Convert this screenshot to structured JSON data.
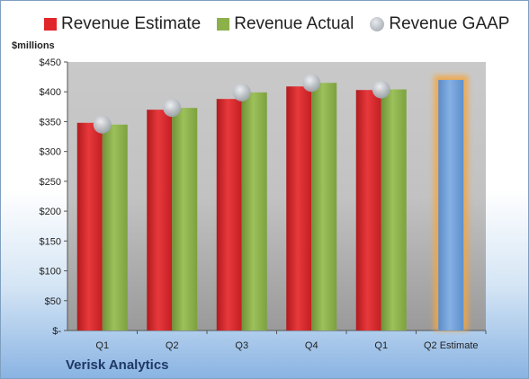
{
  "chart_data": {
    "type": "bar",
    "title": "",
    "ylabel": "$millions",
    "company": "Verisk Analytics",
    "categories": [
      "Q1",
      "Q2",
      "Q3",
      "Q4",
      "Q1",
      "Q2 Estimate"
    ],
    "ylim": [
      0,
      450
    ],
    "yticks": [
      0,
      50,
      100,
      150,
      200,
      250,
      300,
      350,
      400,
      450
    ],
    "ytick_labels": [
      "$-",
      "$50",
      "$100",
      "$150",
      "$200",
      "$250",
      "$300",
      "$350",
      "$400",
      "$450"
    ],
    "series": [
      {
        "name": "Revenue Estimate",
        "type": "bar",
        "color": "#e0262a",
        "values": [
          348,
          370,
          388,
          409,
          403,
          null
        ]
      },
      {
        "name": "Revenue Actual",
        "type": "bar",
        "color": "#8cb14a",
        "values": [
          345,
          373,
          399,
          415,
          404,
          null
        ]
      },
      {
        "name": "Revenue GAAP",
        "type": "scatter",
        "color": "#b9bfc6",
        "values": [
          345,
          373,
          399,
          415,
          404,
          null
        ]
      },
      {
        "name": "Q2 Estimate",
        "type": "bar",
        "color": "#6f9fd8",
        "glow": "#f4a640",
        "values": [
          null,
          null,
          null,
          null,
          null,
          420
        ],
        "show_in_legend": false
      }
    ],
    "legend_position": "top",
    "grid": false
  }
}
